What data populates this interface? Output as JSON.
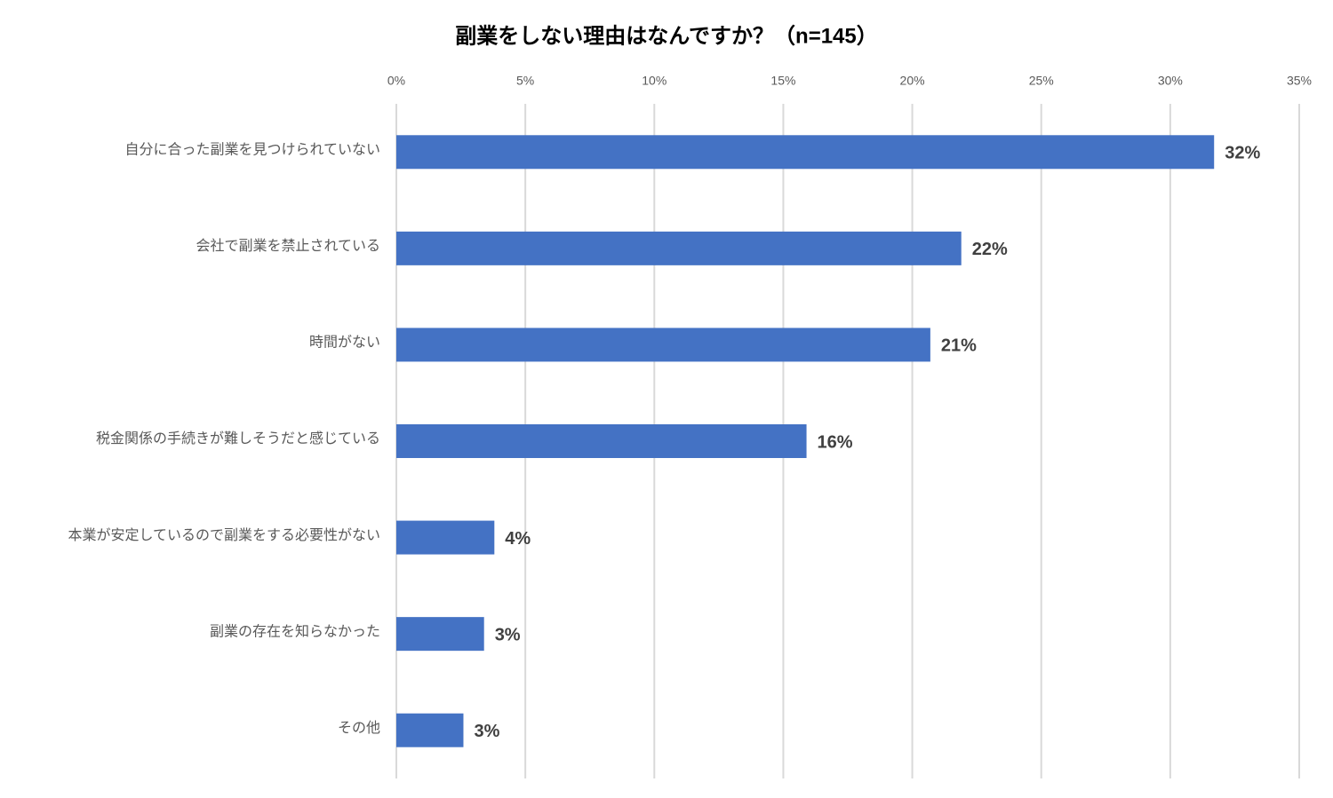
{
  "chart_data": {
    "type": "hbar",
    "title": "副業をしない理由はなんですか？（n=145）",
    "categories": [
      "自分に合った副業を見つけられていない",
      "会社で副業を禁止されている",
      "時間がない",
      "税金関係の手続きが難しそうだと感じている",
      "本業が安定しているので副業をする必要性がない",
      "副業の存在を知らなかった",
      "その他"
    ],
    "values": [
      31.7,
      21.9,
      20.7,
      15.9,
      3.8,
      3.4,
      2.6
    ],
    "value_labels": [
      "32%",
      "22%",
      "21%",
      "16%",
      "4%",
      "3%",
      "3%"
    ],
    "color": "#4472c4",
    "xlim": [
      0,
      35
    ],
    "xticks": [
      {
        "value": 0,
        "label": "0%"
      },
      {
        "value": 5,
        "label": "5%"
      },
      {
        "value": 10,
        "label": "10%"
      },
      {
        "value": 15,
        "label": "15%"
      },
      {
        "value": 20,
        "label": "20%"
      },
      {
        "value": 25,
        "label": "25%"
      },
      {
        "value": 30,
        "label": "30%"
      },
      {
        "value": 35,
        "label": "35%"
      }
    ],
    "grid": true
  }
}
